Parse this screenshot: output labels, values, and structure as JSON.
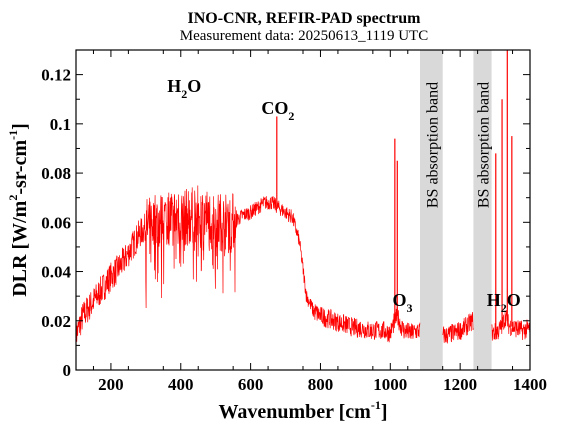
{
  "chart_data": {
    "type": "line",
    "title": "INO-CNR, REFIR-PAD spectrum",
    "subtitle": "Measurement data: 20250613_1119 UTC",
    "xlabel": "Wavenumber [cm-1]",
    "ylabel": "DLR [W/m2-sr-cm-1]",
    "xlim": [
      100,
      1400
    ],
    "ylim": [
      0,
      0.13
    ],
    "x_ticks": [
      200,
      400,
      600,
      800,
      1000,
      1200,
      1400
    ],
    "x_tick_labels": [
      "200",
      "400",
      "600",
      "800",
      "1000",
      "1200",
      "1400"
    ],
    "y_ticks": [
      0,
      0.02,
      0.04,
      0.06,
      0.08,
      0.1,
      0.12
    ],
    "y_tick_labels": [
      "0",
      "0.02",
      "0.04",
      "0.06",
      "0.08",
      "0.1",
      "0.12"
    ],
    "grid": false,
    "series_color": "#ff0000",
    "band_color": "#d9d9d9",
    "bands": [
      {
        "x": [
          1085,
          1150
        ],
        "label": "BS absorption band"
      },
      {
        "x": [
          1238,
          1290
        ],
        "label": "BS absorption band"
      }
    ],
    "annotations": [
      {
        "text": "H2O",
        "x": 410,
        "y": 0.113
      },
      {
        "text": "CO2",
        "x": 678,
        "y": 0.104
      },
      {
        "text": "O3",
        "x": 1035,
        "y": 0.026
      },
      {
        "text": "H2O",
        "x": 1325,
        "y": 0.026
      }
    ],
    "series": [
      {
        "points": [
          [
            100,
            0.014
          ],
          [
            110,
            0.018
          ],
          [
            120,
            0.022
          ],
          [
            140,
            0.026
          ],
          [
            160,
            0.03
          ],
          [
            180,
            0.034
          ],
          [
            200,
            0.038
          ],
          [
            220,
            0.041
          ],
          [
            240,
            0.045
          ],
          [
            260,
            0.05
          ],
          [
            280,
            0.055
          ],
          [
            300,
            0.058
          ],
          [
            320,
            0.06
          ],
          [
            340,
            0.061
          ],
          [
            360,
            0.062
          ],
          [
            380,
            0.063
          ],
          [
            400,
            0.062
          ],
          [
            420,
            0.062
          ],
          [
            440,
            0.063
          ],
          [
            460,
            0.063
          ],
          [
            480,
            0.062
          ],
          [
            500,
            0.061
          ],
          [
            520,
            0.06
          ],
          [
            540,
            0.06
          ],
          [
            560,
            0.061
          ],
          [
            580,
            0.063
          ],
          [
            600,
            0.064
          ],
          [
            620,
            0.066
          ],
          [
            640,
            0.068
          ],
          [
            660,
            0.068
          ],
          [
            680,
            0.066
          ],
          [
            700,
            0.064
          ],
          [
            720,
            0.062
          ],
          [
            740,
            0.052
          ],
          [
            760,
            0.03
          ],
          [
            780,
            0.024
          ],
          [
            800,
            0.022
          ],
          [
            820,
            0.021
          ],
          [
            840,
            0.02
          ],
          [
            860,
            0.019
          ],
          [
            880,
            0.018
          ],
          [
            900,
            0.017
          ],
          [
            920,
            0.017
          ],
          [
            940,
            0.016
          ],
          [
            960,
            0.016
          ],
          [
            980,
            0.016
          ],
          [
            1000,
            0.015
          ],
          [
            1010,
            0.019
          ],
          [
            1020,
            0.022
          ],
          [
            1030,
            0.018
          ],
          [
            1040,
            0.016
          ],
          [
            1060,
            0.015
          ],
          [
            1080,
            0.016
          ],
          [
            1160,
            0.014
          ],
          [
            1180,
            0.015
          ],
          [
            1200,
            0.016
          ],
          [
            1220,
            0.018
          ],
          [
            1235,
            0.02
          ],
          [
            1295,
            0.015
          ],
          [
            1310,
            0.016
          ],
          [
            1320,
            0.018
          ],
          [
            1330,
            0.022
          ],
          [
            1340,
            0.018
          ],
          [
            1360,
            0.017
          ],
          [
            1380,
            0.016
          ],
          [
            1400,
            0.017
          ]
        ],
        "peaks": [
          [
            675,
            0.103
          ],
          [
            1013,
            0.094
          ],
          [
            1020,
            0.085
          ],
          [
            1302,
            0.088
          ],
          [
            1320,
            0.11
          ],
          [
            1335,
            0.13
          ],
          [
            1348,
            0.095
          ]
        ]
      }
    ]
  }
}
